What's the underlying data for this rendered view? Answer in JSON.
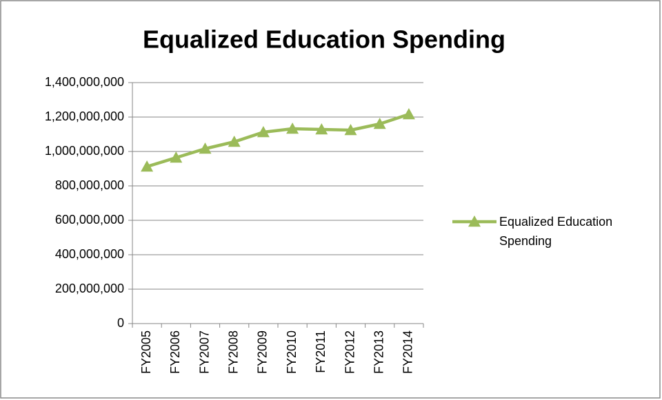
{
  "chart_data": {
    "type": "line",
    "title": "Equalized Education Spending",
    "categories": [
      "FY2005",
      "FY2006",
      "FY2007",
      "FY2008",
      "FY2009",
      "FY2010",
      "FY2011",
      "FY2012",
      "FY2013",
      "FY2014"
    ],
    "series": [
      {
        "name": "Equalized Education Spending",
        "color": "#9bbb59",
        "values": [
          912000000,
          964000000,
          1016000000,
          1056000000,
          1112000000,
          1132000000,
          1128000000,
          1124000000,
          1160000000,
          1216000000
        ]
      }
    ],
    "ylim": [
      0,
      1400000000
    ],
    "yticks": [
      0,
      {
        "value": 200000000,
        "label": "200,000,000"
      },
      {
        "value": 400000000,
        "label": "400,000,000"
      },
      {
        "value": 600000000,
        "label": "600,000,000"
      },
      {
        "value": 800000000,
        "label": "800,000,000"
      },
      {
        "value": 1000000000,
        "label": "1,000,000,000"
      },
      {
        "value": 1200000000,
        "label": "1,200,000,000"
      },
      {
        "value": 1400000000,
        "label": "1,400,000,000"
      }
    ],
    "grid": true,
    "legend": "right"
  }
}
